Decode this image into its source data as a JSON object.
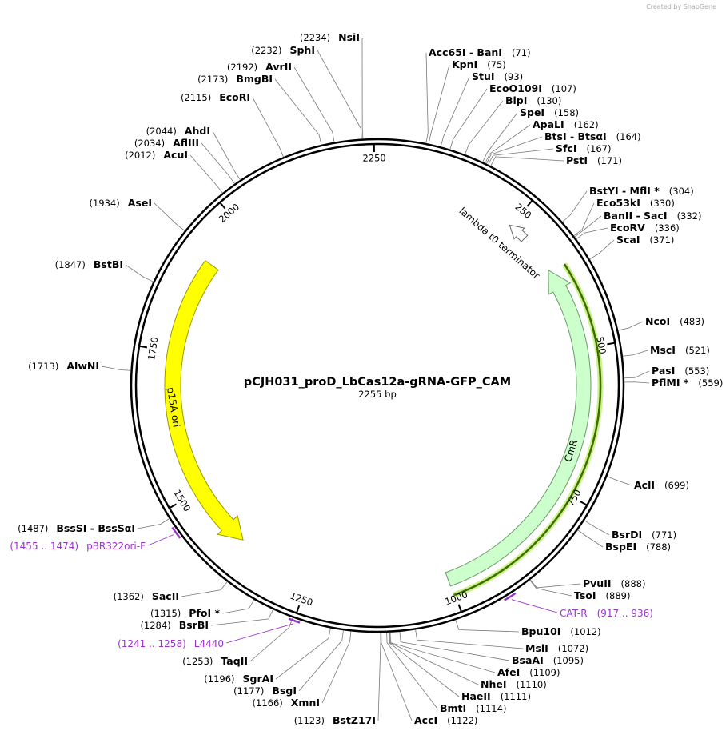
{
  "credit": "Created by SnapGene",
  "title": "pCJH031_proD_LbCas12a-gRNA-GFP_CAM",
  "length": {
    "value": 2255,
    "label": "2255 bp"
  },
  "ticks": [
    250,
    500,
    750,
    1000,
    1250,
    1500,
    1750,
    2000,
    2250
  ],
  "features": [
    {
      "name": "p15A ori"
    },
    {
      "name": "CmR"
    },
    {
      "name": "lambda t0 terminator"
    }
  ],
  "enzymes": [
    {
      "name": "Acc65I  - BanI",
      "position": {
        "value": 71,
        "label": "(71)"
      }
    },
    {
      "name": "KpnI",
      "position": {
        "value": 75,
        "label": "(75)"
      }
    },
    {
      "name": "StuI",
      "position": {
        "value": 93,
        "label": "(93)"
      }
    },
    {
      "name": "EcoO109I",
      "position": {
        "value": 107,
        "label": "(107)"
      }
    },
    {
      "name": "BlpI",
      "position": {
        "value": 130,
        "label": "(130)"
      }
    },
    {
      "name": "SpeI",
      "position": {
        "value": 158,
        "label": "(158)"
      }
    },
    {
      "name": "ApaLI",
      "position": {
        "value": 162,
        "label": "(162)"
      }
    },
    {
      "name": "BtsI  - BtsαI",
      "position": {
        "value": 164,
        "label": "(164)"
      }
    },
    {
      "name": "SfcI",
      "position": {
        "value": 167,
        "label": "(167)"
      }
    },
    {
      "name": "PstI",
      "position": {
        "value": 171,
        "label": "(171)"
      }
    },
    {
      "name": "BstYI  - MflI *",
      "position": {
        "value": 304,
        "label": "(304)"
      }
    },
    {
      "name": "Eco53kI",
      "position": {
        "value": 330,
        "label": "(330)"
      }
    },
    {
      "name": "BanII  - SacI",
      "position": {
        "value": 332,
        "label": "(332)"
      }
    },
    {
      "name": "EcoRV",
      "position": {
        "value": 336,
        "label": "(336)"
      }
    },
    {
      "name": "ScaI",
      "position": {
        "value": 371,
        "label": "(371)"
      }
    },
    {
      "name": "NcoI",
      "position": {
        "value": 483,
        "label": "(483)"
      }
    },
    {
      "name": "MscI",
      "position": {
        "value": 521,
        "label": "(521)"
      }
    },
    {
      "name": "PasI",
      "position": {
        "value": 553,
        "label": "(553)"
      }
    },
    {
      "name": "PflMI *",
      "position": {
        "value": 559,
        "label": "(559)"
      }
    },
    {
      "name": "AclI",
      "position": {
        "value": 699,
        "label": "(699)"
      }
    },
    {
      "name": "BsrDI",
      "position": {
        "value": 771,
        "label": "(771)"
      }
    },
    {
      "name": "BspEI",
      "position": {
        "value": 788,
        "label": "(788)"
      }
    },
    {
      "name": "PvuII",
      "position": {
        "value": 888,
        "label": "(888)"
      }
    },
    {
      "name": "TsoI",
      "position": {
        "value": 889,
        "label": "(889)"
      }
    },
    {
      "name": "Bpu10I",
      "position": {
        "value": 1012,
        "label": "(1012)"
      }
    },
    {
      "name": "MslI",
      "position": {
        "value": 1072,
        "label": "(1072)"
      }
    },
    {
      "name": "BsaAI",
      "position": {
        "value": 1095,
        "label": "(1095)"
      }
    },
    {
      "name": "AfeI",
      "position": {
        "value": 1109,
        "label": "(1109)"
      }
    },
    {
      "name": "NheI",
      "position": {
        "value": 1110,
        "label": "(1110)"
      }
    },
    {
      "name": "HaeII",
      "position": {
        "value": 1111,
        "label": "(1111)"
      }
    },
    {
      "name": "BmtI",
      "position": {
        "value": 1114,
        "label": "(1114)"
      }
    },
    {
      "name": "AccI",
      "position": {
        "value": 1122,
        "label": "(1122)"
      }
    },
    {
      "name": "BstZ17I",
      "position": {
        "value": 1123,
        "label": "(1123)"
      }
    },
    {
      "name": "XmnI",
      "position": {
        "value": 1166,
        "label": "(1166)"
      }
    },
    {
      "name": "BsgI",
      "position": {
        "value": 1177,
        "label": "(1177)"
      }
    },
    {
      "name": "SgrAI",
      "position": {
        "value": 1196,
        "label": "(1196)"
      }
    },
    {
      "name": "TaqII",
      "position": {
        "value": 1253,
        "label": "(1253)"
      }
    },
    {
      "name": "BsrBI",
      "position": {
        "value": 1284,
        "label": "(1284)"
      }
    },
    {
      "name": "PfoI *",
      "position": {
        "value": 1315,
        "label": "(1315)"
      }
    },
    {
      "name": "SacII",
      "position": {
        "value": 1362,
        "label": "(1362)"
      }
    },
    {
      "name": "BssSI  - BssSαI",
      "position": {
        "value": 1487,
        "label": "(1487)"
      }
    },
    {
      "name": "AlwNI",
      "position": {
        "value": 1713,
        "label": "(1713)"
      }
    },
    {
      "name": "BstBI",
      "position": {
        "value": 1847,
        "label": "(1847)"
      }
    },
    {
      "name": "AseI",
      "position": {
        "value": 1934,
        "label": "(1934)"
      }
    },
    {
      "name": "AcuI",
      "position": {
        "value": 2012,
        "label": "(2012)"
      }
    },
    {
      "name": "AflIII",
      "position": {
        "value": 2034,
        "label": "(2034)"
      }
    },
    {
      "name": "AhdI",
      "position": {
        "value": 2044,
        "label": "(2044)"
      }
    },
    {
      "name": "EcoRI",
      "position": {
        "value": 2115,
        "label": "(2115)"
      }
    },
    {
      "name": "BmgBI",
      "position": {
        "value": 2173,
        "label": "(2173)"
      }
    },
    {
      "name": "AvrII",
      "position": {
        "value": 2192,
        "label": "(2192)"
      }
    },
    {
      "name": "SphI",
      "position": {
        "value": 2232,
        "label": "(2232)"
      }
    },
    {
      "name": "NsiI",
      "position": {
        "value": 2234,
        "label": "(2234)"
      }
    }
  ],
  "primers": [
    {
      "name": "CAT-R",
      "range": {
        "start": 917,
        "end": 936,
        "label": "(917 .. 936)"
      }
    },
    {
      "name": "L4440",
      "range": {
        "start": 1241,
        "end": 1258,
        "label": "(1241 .. 1258)"
      }
    },
    {
      "name": "pBR322ori-F",
      "range": {
        "start": 1455,
        "end": 1474,
        "label": "(1455 .. 1474)"
      }
    }
  ]
}
